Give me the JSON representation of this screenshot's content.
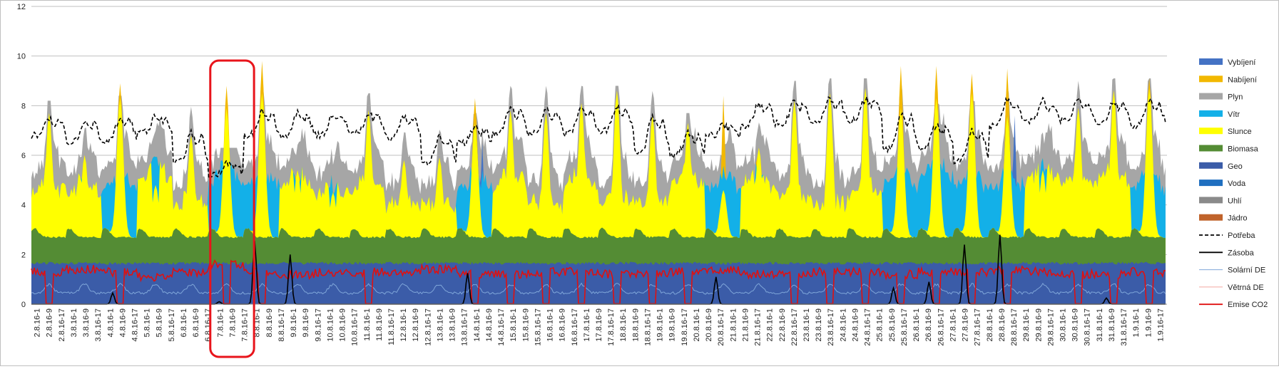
{
  "chart_data": {
    "type": "area",
    "title": "",
    "xlabel": "",
    "ylabel": "",
    "ylim": [
      0,
      12
    ],
    "ytick_step": 2,
    "grid": "horizontal",
    "legend_position": "right",
    "x_labels": [
      "2.8.16-1",
      "2.8.16-9",
      "2.8.16-17",
      "3.8.16-1",
      "3.8.16-9",
      "3.8.16-17",
      "4.8.16-1",
      "4.8.16-9",
      "4.8.16-17",
      "5.8.16-1",
      "5.8.16-9",
      "5.8.16-17",
      "6.8.16-1",
      "6.8.16-9",
      "6.8.16-17",
      "7.8.16-1",
      "7.8.16-9",
      "7.8.16-17",
      "8.8.16-1",
      "8.8.16-9",
      "8.8.16-17",
      "9.8.16-1",
      "9.8.16-9",
      "9.8.16-17",
      "10.8.16-1",
      "10.8.16-9",
      "10.8.16-17",
      "11.8.16-1",
      "11.8.16-9",
      "11.8.16-17",
      "12.8.16-1",
      "12.8.16-9",
      "12.8.16-17",
      "13.8.16-1",
      "13.8.16-9",
      "13.8.16-17",
      "14.8.16-1",
      "14.8.16-9",
      "14.8.16-17",
      "15.8.16-1",
      "15.8.16-9",
      "15.8.16-17",
      "16.8.16-1",
      "16.8.16-9",
      "16.8.16-17",
      "17.8.16-1",
      "17.8.16-9",
      "17.8.16-17",
      "18.8.16-1",
      "18.8.16-9",
      "18.8.16-17",
      "19.8.16-1",
      "19.8.16-9",
      "19.8.16-17",
      "20.8.16-1",
      "20.8.16-9",
      "20.8.16-17",
      "21.8.16-1",
      "21.8.16-9",
      "21.8.16-17",
      "22.8.16-1",
      "22.8.16-9",
      "22.8.16-17",
      "23.8.16-1",
      "23.8.16-9",
      "23.8.16-17",
      "24.8.16-1",
      "24.8.16-9",
      "24.8.16-17",
      "25.8.16-1",
      "25.8.16-9",
      "25.8.16-17",
      "26.8.16-1",
      "26.8.16-9",
      "26.8.16-17",
      "27.8.16-1",
      "27.8.16-9",
      "27.8.16-17",
      "28.8.16-1",
      "28.8.16-9",
      "28.8.16-17",
      "29.8.16-1",
      "29.8.16-9",
      "29.8.16-17",
      "30.8.16-1",
      "30.8.16-9",
      "30.8.16-17",
      "31.8.16-1",
      "31.8.16-9",
      "31.8.16-17",
      "1.9.16-1",
      "1.9.16-9",
      "1.9.16-17"
    ],
    "daily_solar_peak": [
      7.7,
      6.0,
      8.3,
      4.8,
      6.8,
      7.9,
      8.5,
      5.4,
      4.5,
      7.8,
      5.8,
      5.9,
      7.3,
      7.8,
      7.7,
      8.1,
      8.6,
      7.6,
      7.3,
      4.6,
      6.3,
      8.2,
      8.5,
      8.7,
      7.9,
      8.3,
      8.5,
      7.6,
      5.4,
      7.9,
      8.6,
      8.7
    ],
    "daily_charging_peak": [
      0,
      0,
      8.9,
      0,
      0,
      8.8,
      9.8,
      0,
      0,
      0,
      0,
      0,
      8.3,
      0,
      0,
      0,
      0,
      0,
      0,
      8.4,
      0,
      0,
      0,
      0,
      9.6,
      9.6,
      9.3,
      9.5,
      0,
      0,
      0,
      9.1
    ],
    "daily_discharge_peak": [
      0,
      0,
      0,
      0,
      0,
      0,
      0,
      0,
      0,
      0,
      0,
      0,
      6.5,
      0,
      0,
      0,
      0,
      0,
      0,
      0,
      0,
      0,
      0,
      0,
      0,
      0,
      0,
      7.6,
      0,
      0,
      0,
      0
    ],
    "daily_demand_peak": [
      8.1,
      8.2,
      8.3,
      8.2,
      7.9,
      6.2,
      8.5,
      8.5,
      8.4,
      8.4,
      8.3,
      7.6,
      7.6,
      8.7,
      8.7,
      8.7,
      8.7,
      8.8,
      7.6,
      7.5,
      8.8,
      8.9,
      9.0,
      9.0,
      9.0,
      8.0,
      8.1,
      9.1,
      8.8,
      8.9,
      9.0,
      9.0
    ],
    "daily_demand_min": [
      6.8,
      6.5,
      6.6,
      6.9,
      5.7,
      5.2,
      6.8,
      6.8,
      6.8,
      6.9,
      6.7,
      5.7,
      6.5,
      6.9,
      6.9,
      6.9,
      7.0,
      6.1,
      6.0,
      6.8,
      7.2,
      7.3,
      7.4,
      7.4,
      6.2,
      6.3,
      5.8,
      7.2,
      7.4,
      7.4,
      7.2,
      7.2
    ],
    "daily_storage_peak": [
      0,
      0,
      0.45,
      0,
      0,
      0.1,
      2.55,
      2.0,
      0,
      0,
      0,
      0,
      1.25,
      0,
      0,
      0,
      0,
      0,
      0,
      1.1,
      0,
      0,
      0,
      0,
      0.65,
      0.9,
      2.4,
      2.8,
      0,
      0,
      0.25,
      0
    ],
    "daily_emission_level": [
      1.3,
      1.4,
      1.3,
      1.1,
      1.3,
      1.6,
      1.3,
      1.2,
      1.3,
      1.3,
      1.3,
      1.4,
      1.2,
      1.2,
      1.3,
      1.3,
      1.2,
      1.2,
      1.3,
      1.4,
      1.2,
      1.2,
      1.3,
      1.3,
      1.2,
      1.3,
      1.3,
      1.4,
      1.3,
      1.2,
      1.2,
      1.3
    ],
    "base_levels": {
      "hydro_geo": 1.1,
      "biomass_top": 2.7,
      "coal_gas_top_min": 4.6
    },
    "series": [
      {
        "name": "Vybíjení",
        "color": "#4472c4",
        "style": "area"
      },
      {
        "name": "Nabíjení",
        "color": "#f2b800",
        "style": "area"
      },
      {
        "name": "Plyn",
        "color": "#a6a6a6",
        "style": "area"
      },
      {
        "name": "Vítr",
        "color": "#13b0e8",
        "style": "area"
      },
      {
        "name": "Slunce",
        "color": "#ffff00",
        "style": "area"
      },
      {
        "name": "Biomasa",
        "color": "#548c34",
        "style": "area"
      },
      {
        "name": "Geo",
        "color": "#3b5ca8",
        "style": "area"
      },
      {
        "name": "Voda",
        "color": "#1f6fc0",
        "style": "area"
      },
      {
        "name": "Uhlí",
        "color": "#8a8a8a",
        "style": "area"
      },
      {
        "name": "Jádro",
        "color": "#c0632b",
        "style": "area"
      },
      {
        "name": "Potřeba",
        "color": "#000000",
        "style": "dashed-line"
      },
      {
        "name": "Zásoba",
        "color": "#000000",
        "style": "line"
      },
      {
        "name": "Solární DE",
        "color": "#7fa6d9",
        "style": "thin-line"
      },
      {
        "name": "Větrná DE",
        "color": "#f4a6a0",
        "style": "thin-line"
      },
      {
        "name": "Emise CO2",
        "color": "#e01010",
        "style": "line"
      }
    ],
    "highlight": {
      "days": [
        "7.8.16-1",
        "7.8.16-9",
        "7.8.16-17"
      ],
      "color": "#e8141b"
    }
  }
}
